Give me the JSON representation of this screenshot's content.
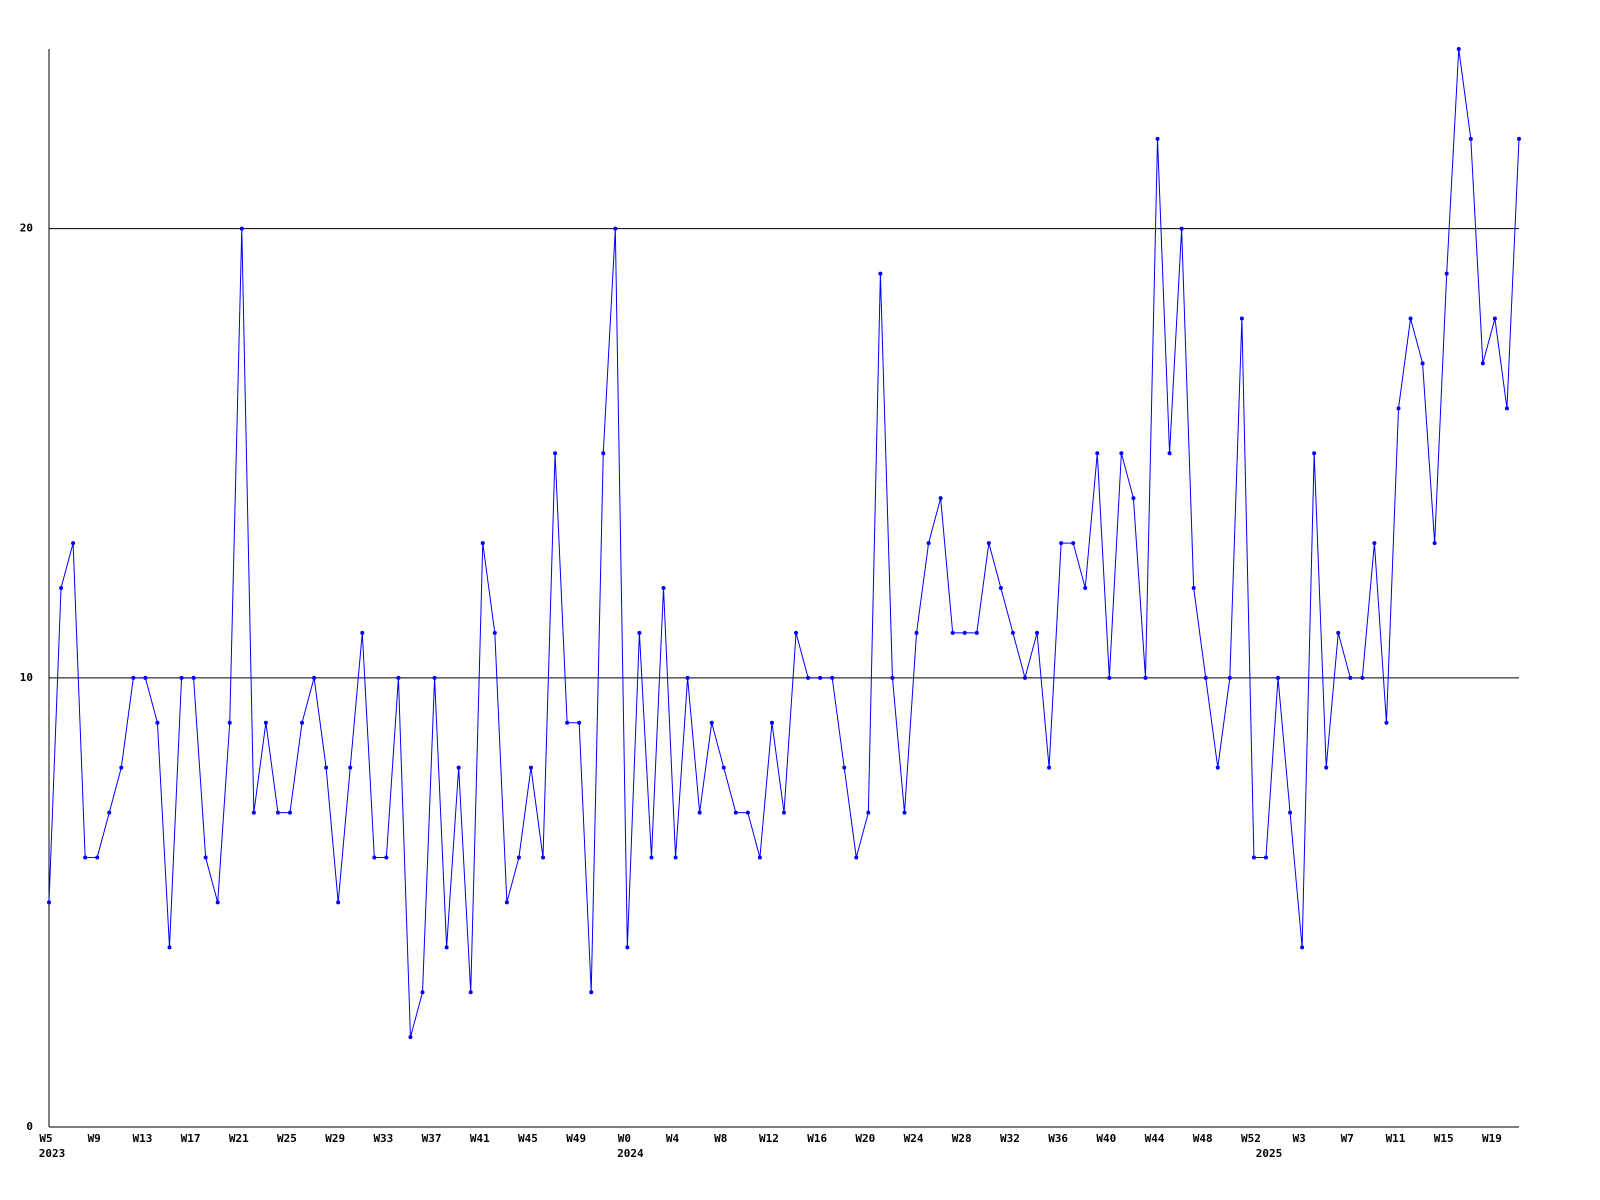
{
  "chart_data": {
    "type": "line",
    "categories": [
      "W5",
      null,
      null,
      null,
      "W9",
      null,
      null,
      null,
      "W13",
      null,
      null,
      null,
      "W17",
      null,
      null,
      null,
      "W21",
      null,
      null,
      null,
      "W25",
      null,
      null,
      null,
      "W29",
      null,
      null,
      null,
      "W33",
      null,
      null,
      null,
      "W37",
      null,
      null,
      null,
      "W41",
      null,
      null,
      null,
      "W45",
      null,
      null,
      null,
      "W49",
      null,
      null,
      null,
      "W0",
      null,
      null,
      null,
      "W4",
      null,
      null,
      null,
      "W8",
      null,
      null,
      null,
      "W12",
      null,
      null,
      null,
      "W16",
      null,
      null,
      null,
      "W20",
      null,
      null,
      null,
      "W24",
      null,
      null,
      null,
      "W28",
      null,
      null,
      null,
      "W32",
      null,
      null,
      null,
      "W36",
      null,
      null,
      null,
      "W40",
      null,
      null,
      null,
      "W44",
      null,
      null,
      null,
      "W48",
      null,
      null,
      null,
      "W52",
      null,
      null,
      null,
      "W3",
      null,
      null,
      null,
      "W7",
      null,
      null,
      null,
      "W11",
      null,
      null,
      null,
      "W15",
      null,
      null,
      null,
      "W19",
      null,
      null
    ],
    "category_years": [
      "2023",
      null,
      null,
      null,
      null,
      null,
      null,
      null,
      null,
      null,
      null,
      null,
      null,
      null,
      null,
      null,
      null,
      null,
      null,
      null,
      null,
      null,
      null,
      null,
      null,
      null,
      null,
      null,
      null,
      null,
      null,
      null,
      null,
      null,
      null,
      null,
      null,
      null,
      null,
      null,
      null,
      null,
      null,
      null,
      null,
      null,
      null,
      null,
      "2024",
      null,
      null,
      null,
      null,
      null,
      null,
      null,
      null,
      null,
      null,
      null,
      null,
      null,
      null,
      null,
      null,
      null,
      null,
      null,
      null,
      null,
      null,
      null,
      null,
      null,
      null,
      null,
      null,
      null,
      null,
      null,
      null,
      null,
      null,
      null,
      null,
      null,
      null,
      null,
      null,
      null,
      null,
      null,
      null,
      null,
      null,
      null,
      null,
      null,
      null,
      null,
      null,
      "2025",
      null,
      null,
      null,
      null,
      null,
      null,
      null,
      null,
      null,
      null,
      null,
      null,
      null,
      null,
      null,
      null,
      null,
      null,
      null,
      null,
      null
    ],
    "series": [
      {
        "color": "#0000ff",
        "values": [
          5,
          12,
          13,
          6,
          6,
          7,
          8,
          10,
          10,
          9,
          4,
          10,
          10,
          6,
          5,
          9,
          20,
          7,
          9,
          7,
          7,
          9,
          10,
          8,
          5,
          8,
          11,
          6,
          6,
          10,
          2,
          3,
          10,
          4,
          8,
          3,
          13,
          11,
          5,
          6,
          8,
          6,
          15,
          9,
          9,
          3,
          15,
          20,
          4,
          11,
          6,
          12,
          6,
          10,
          7,
          9,
          8,
          7,
          7,
          6,
          9,
          7,
          11,
          10,
          10,
          10,
          8,
          6,
          7,
          19,
          10,
          7,
          11,
          13,
          14,
          11,
          11,
          11,
          13,
          12,
          11,
          10,
          11,
          8,
          13,
          13,
          12,
          15,
          10,
          15,
          14,
          10,
          22,
          15,
          20,
          12,
          10,
          8,
          10,
          18,
          6,
          6,
          10,
          7,
          4,
          15,
          8,
          11,
          10,
          10,
          13,
          9,
          16,
          18,
          17,
          13,
          19,
          24,
          22,
          17,
          18,
          16,
          22
        ]
      }
    ],
    "ylim": [
      0,
      24
    ],
    "yticks": [
      0,
      10,
      20
    ],
    "grid": true
  }
}
